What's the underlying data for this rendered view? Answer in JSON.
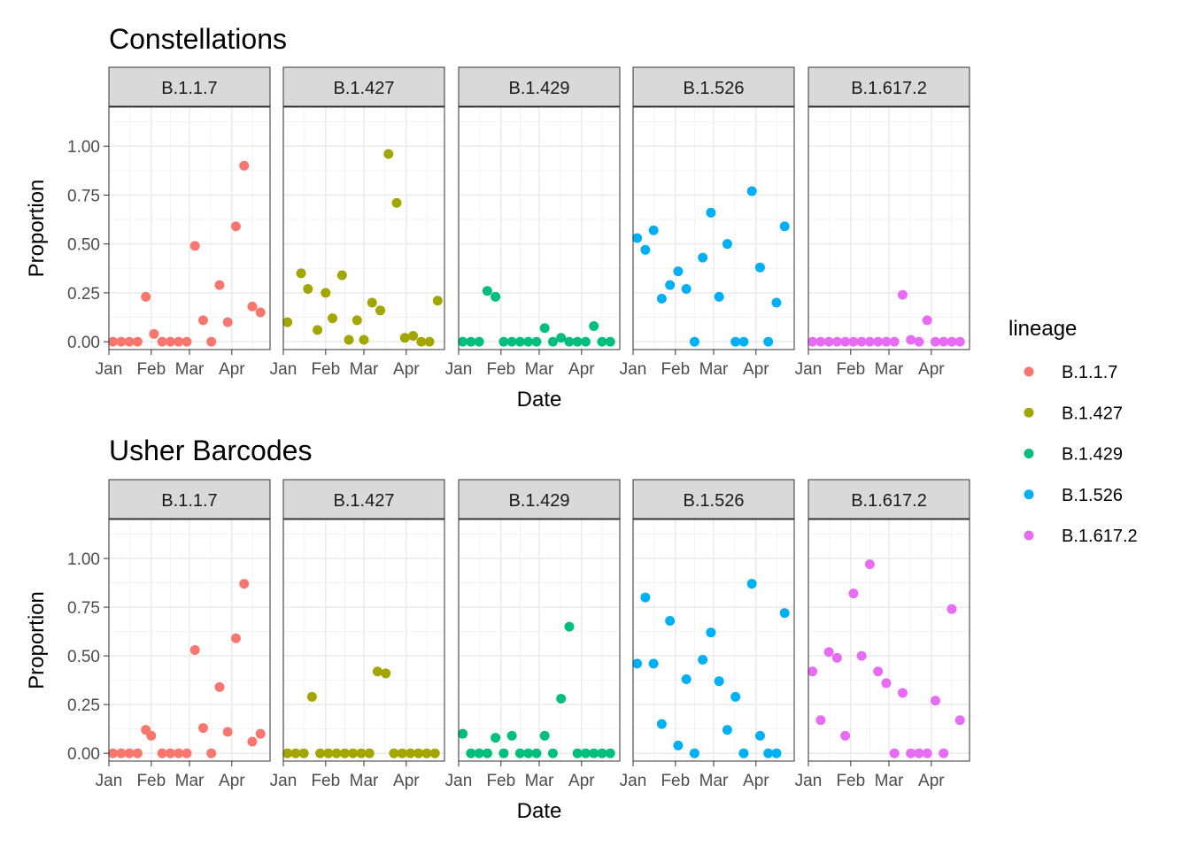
{
  "chart_data": [
    {
      "type": "scatter",
      "title": "Constellations",
      "xlabel": "Date",
      "ylabel": "Proportion",
      "ylim": [
        -0.04,
        1.2
      ],
      "xlim": [
        "2021-01-01",
        "2021-04-29"
      ],
      "y_ticks": [
        "0.00",
        "0.25",
        "0.50",
        "0.75",
        "1.00"
      ],
      "y_tick_values": [
        0,
        0.25,
        0.5,
        0.75,
        1.0
      ],
      "x_ticks": [
        "Jan",
        "Feb",
        "Mar",
        "Apr"
      ],
      "x_tick_values": [
        "2021-01-01",
        "2021-02-01",
        "2021-03-01",
        "2021-04-01"
      ],
      "grid": true,
      "series": [
        {
          "name": "B.1.1.7",
          "color": "#F8766D",
          "points": [
            [
              "2021-01-04",
              0
            ],
            [
              "2021-01-10",
              0
            ],
            [
              "2021-01-16",
              0
            ],
            [
              "2021-01-22",
              0
            ],
            [
              "2021-01-28",
              0.23
            ],
            [
              "2021-02-03",
              0.04
            ],
            [
              "2021-02-09",
              0
            ],
            [
              "2021-02-15",
              0
            ],
            [
              "2021-02-21",
              0
            ],
            [
              "2021-02-27",
              0
            ],
            [
              "2021-03-05",
              0.49
            ],
            [
              "2021-03-11",
              0.11
            ],
            [
              "2021-03-17",
              0
            ],
            [
              "2021-03-23",
              0.29
            ],
            [
              "2021-03-29",
              0.1
            ],
            [
              "2021-04-04",
              0.59
            ],
            [
              "2021-04-10",
              0.9
            ],
            [
              "2021-04-16",
              0.18
            ],
            [
              "2021-04-22",
              0.15
            ]
          ]
        },
        {
          "name": "B.1.427",
          "color": "#A3A500",
          "points": [
            [
              "2021-01-04",
              0.1
            ],
            [
              "2021-01-14",
              0.35
            ],
            [
              "2021-01-19",
              0.27
            ],
            [
              "2021-01-26",
              0.06
            ],
            [
              "2021-02-01",
              0.25
            ],
            [
              "2021-02-06",
              0.12
            ],
            [
              "2021-02-13",
              0.34
            ],
            [
              "2021-02-18",
              0.01
            ],
            [
              "2021-02-24",
              0.11
            ],
            [
              "2021-03-01",
              0.01
            ],
            [
              "2021-03-07",
              0.2
            ],
            [
              "2021-03-13",
              0.16
            ],
            [
              "2021-03-19",
              0.96
            ],
            [
              "2021-03-25",
              0.71
            ],
            [
              "2021-03-31",
              0.02
            ],
            [
              "2021-04-06",
              0.03
            ],
            [
              "2021-04-12",
              0
            ],
            [
              "2021-04-18",
              0
            ],
            [
              "2021-04-24",
              0.21
            ]
          ]
        },
        {
          "name": "B.1.429",
          "color": "#00BF7D",
          "points": [
            [
              "2021-01-04",
              0
            ],
            [
              "2021-01-10",
              0
            ],
            [
              "2021-01-16",
              0
            ],
            [
              "2021-01-22",
              0.26
            ],
            [
              "2021-01-28",
              0.23
            ],
            [
              "2021-02-03",
              0
            ],
            [
              "2021-02-09",
              0
            ],
            [
              "2021-02-15",
              0
            ],
            [
              "2021-02-21",
              0
            ],
            [
              "2021-02-27",
              0
            ],
            [
              "2021-03-05",
              0.07
            ],
            [
              "2021-03-11",
              0
            ],
            [
              "2021-03-17",
              0.02
            ],
            [
              "2021-03-23",
              0
            ],
            [
              "2021-03-29",
              0
            ],
            [
              "2021-04-04",
              0
            ],
            [
              "2021-04-10",
              0.08
            ],
            [
              "2021-04-16",
              0
            ],
            [
              "2021-04-22",
              0
            ]
          ]
        },
        {
          "name": "B.1.526",
          "color": "#00B0F6",
          "points": [
            [
              "2021-01-04",
              0.53
            ],
            [
              "2021-01-10",
              0.47
            ],
            [
              "2021-01-16",
              0.57
            ],
            [
              "2021-01-22",
              0.22
            ],
            [
              "2021-01-28",
              0.29
            ],
            [
              "2021-02-03",
              0.36
            ],
            [
              "2021-02-09",
              0.27
            ],
            [
              "2021-02-15",
              0
            ],
            [
              "2021-02-21",
              0.43
            ],
            [
              "2021-02-27",
              0.66
            ],
            [
              "2021-03-05",
              0.23
            ],
            [
              "2021-03-11",
              0.5
            ],
            [
              "2021-03-17",
              0
            ],
            [
              "2021-03-23",
              0
            ],
            [
              "2021-03-29",
              0.77
            ],
            [
              "2021-04-04",
              0.38
            ],
            [
              "2021-04-10",
              0
            ],
            [
              "2021-04-16",
              0.2
            ],
            [
              "2021-04-22",
              0.59
            ]
          ]
        },
        {
          "name": "B.1.617.2",
          "color": "#E76BF3",
          "points": [
            [
              "2021-01-04",
              0
            ],
            [
              "2021-01-10",
              0
            ],
            [
              "2021-01-16",
              0
            ],
            [
              "2021-01-22",
              0
            ],
            [
              "2021-01-28",
              0
            ],
            [
              "2021-02-03",
              0
            ],
            [
              "2021-02-09",
              0
            ],
            [
              "2021-02-15",
              0
            ],
            [
              "2021-02-21",
              0
            ],
            [
              "2021-02-27",
              0
            ],
            [
              "2021-03-05",
              0
            ],
            [
              "2021-03-11",
              0.24
            ],
            [
              "2021-03-17",
              0.01
            ],
            [
              "2021-03-23",
              0
            ],
            [
              "2021-03-29",
              0.11
            ],
            [
              "2021-04-04",
              0
            ],
            [
              "2021-04-10",
              0
            ],
            [
              "2021-04-16",
              0
            ],
            [
              "2021-04-22",
              0
            ]
          ]
        }
      ]
    },
    {
      "type": "scatter",
      "title": "Usher Barcodes",
      "xlabel": "Date",
      "ylabel": "Proportion",
      "ylim": [
        -0.04,
        1.2
      ],
      "xlim": [
        "2021-01-01",
        "2021-04-29"
      ],
      "y_ticks": [
        "0.00",
        "0.25",
        "0.50",
        "0.75",
        "1.00"
      ],
      "y_tick_values": [
        0,
        0.25,
        0.5,
        0.75,
        1.0
      ],
      "x_ticks": [
        "Jan",
        "Feb",
        "Mar",
        "Apr"
      ],
      "x_tick_values": [
        "2021-01-01",
        "2021-02-01",
        "2021-03-01",
        "2021-04-01"
      ],
      "grid": true,
      "series": [
        {
          "name": "B.1.1.7",
          "color": "#F8766D",
          "points": [
            [
              "2021-01-04",
              0
            ],
            [
              "2021-01-10",
              0
            ],
            [
              "2021-01-16",
              0
            ],
            [
              "2021-01-22",
              0
            ],
            [
              "2021-01-28",
              0.12
            ],
            [
              "2021-02-01",
              0.09
            ],
            [
              "2021-02-09",
              0
            ],
            [
              "2021-02-15",
              0
            ],
            [
              "2021-02-21",
              0
            ],
            [
              "2021-02-27",
              0
            ],
            [
              "2021-03-05",
              0.53
            ],
            [
              "2021-03-11",
              0.13
            ],
            [
              "2021-03-17",
              0
            ],
            [
              "2021-03-23",
              0.34
            ],
            [
              "2021-03-29",
              0.11
            ],
            [
              "2021-04-04",
              0.59
            ],
            [
              "2021-04-10",
              0.87
            ],
            [
              "2021-04-16",
              0.06
            ],
            [
              "2021-04-22",
              0.1
            ]
          ]
        },
        {
          "name": "B.1.427",
          "color": "#A3A500",
          "points": [
            [
              "2021-01-04",
              0
            ],
            [
              "2021-01-10",
              0
            ],
            [
              "2021-01-16",
              0
            ],
            [
              "2021-01-22",
              0.29
            ],
            [
              "2021-01-28",
              0
            ],
            [
              "2021-02-03",
              0
            ],
            [
              "2021-02-09",
              0
            ],
            [
              "2021-02-15",
              0
            ],
            [
              "2021-02-21",
              0
            ],
            [
              "2021-02-27",
              0
            ],
            [
              "2021-03-05",
              0
            ],
            [
              "2021-03-11",
              0.42
            ],
            [
              "2021-03-17",
              0.41
            ],
            [
              "2021-03-23",
              0
            ],
            [
              "2021-03-29",
              0
            ],
            [
              "2021-04-04",
              0
            ],
            [
              "2021-04-10",
              0
            ],
            [
              "2021-04-16",
              0
            ],
            [
              "2021-04-22",
              0
            ]
          ]
        },
        {
          "name": "B.1.429",
          "color": "#00BF7D",
          "points": [
            [
              "2021-01-04",
              0.1
            ],
            [
              "2021-01-10",
              0
            ],
            [
              "2021-01-16",
              0
            ],
            [
              "2021-01-22",
              0
            ],
            [
              "2021-01-28",
              0.08
            ],
            [
              "2021-02-03",
              0
            ],
            [
              "2021-02-09",
              0.09
            ],
            [
              "2021-02-15",
              0
            ],
            [
              "2021-02-21",
              0
            ],
            [
              "2021-02-27",
              0
            ],
            [
              "2021-03-05",
              0.09
            ],
            [
              "2021-03-11",
              0
            ],
            [
              "2021-03-17",
              0.28
            ],
            [
              "2021-03-23",
              0.65
            ],
            [
              "2021-03-29",
              0
            ],
            [
              "2021-04-04",
              0
            ],
            [
              "2021-04-10",
              0
            ],
            [
              "2021-04-16",
              0
            ],
            [
              "2021-04-22",
              0
            ]
          ]
        },
        {
          "name": "B.1.526",
          "color": "#00B0F6",
          "points": [
            [
              "2021-01-04",
              0.46
            ],
            [
              "2021-01-10",
              0.8
            ],
            [
              "2021-01-16",
              0.46
            ],
            [
              "2021-01-22",
              0.15
            ],
            [
              "2021-01-28",
              0.68
            ],
            [
              "2021-02-03",
              0.04
            ],
            [
              "2021-02-09",
              0.38
            ],
            [
              "2021-02-15",
              0
            ],
            [
              "2021-02-21",
              0.48
            ],
            [
              "2021-02-27",
              0.62
            ],
            [
              "2021-03-05",
              0.37
            ],
            [
              "2021-03-11",
              0.12
            ],
            [
              "2021-03-17",
              0.29
            ],
            [
              "2021-03-23",
              0
            ],
            [
              "2021-03-29",
              0.87
            ],
            [
              "2021-04-04",
              0.09
            ],
            [
              "2021-04-10",
              0
            ],
            [
              "2021-04-16",
              0
            ],
            [
              "2021-04-22",
              0.72
            ]
          ]
        },
        {
          "name": "B.1.617.2",
          "color": "#E76BF3",
          "points": [
            [
              "2021-01-04",
              0.42
            ],
            [
              "2021-01-10",
              0.17
            ],
            [
              "2021-01-16",
              0.52
            ],
            [
              "2021-01-22",
              0.49
            ],
            [
              "2021-01-28",
              0.09
            ],
            [
              "2021-02-03",
              0.82
            ],
            [
              "2021-02-09",
              0.5
            ],
            [
              "2021-02-15",
              0.97
            ],
            [
              "2021-02-21",
              0.42
            ],
            [
              "2021-02-27",
              0.36
            ],
            [
              "2021-03-05",
              0
            ],
            [
              "2021-03-11",
              0.31
            ],
            [
              "2021-03-17",
              0
            ],
            [
              "2021-03-23",
              0
            ],
            [
              "2021-03-29",
              0
            ],
            [
              "2021-04-04",
              0.27
            ],
            [
              "2021-04-10",
              0
            ],
            [
              "2021-04-16",
              0.74
            ],
            [
              "2021-04-22",
              0.17
            ]
          ]
        }
      ]
    }
  ],
  "legend": {
    "title": "lineage",
    "position": "right",
    "items": [
      {
        "label": "B.1.1.7",
        "color": "#F8766D"
      },
      {
        "label": "B.1.427",
        "color": "#A3A500"
      },
      {
        "label": "B.1.429",
        "color": "#00BF7D"
      },
      {
        "label": "B.1.526",
        "color": "#00B0F6"
      },
      {
        "label": "B.1.617.2",
        "color": "#E76BF3"
      }
    ]
  }
}
